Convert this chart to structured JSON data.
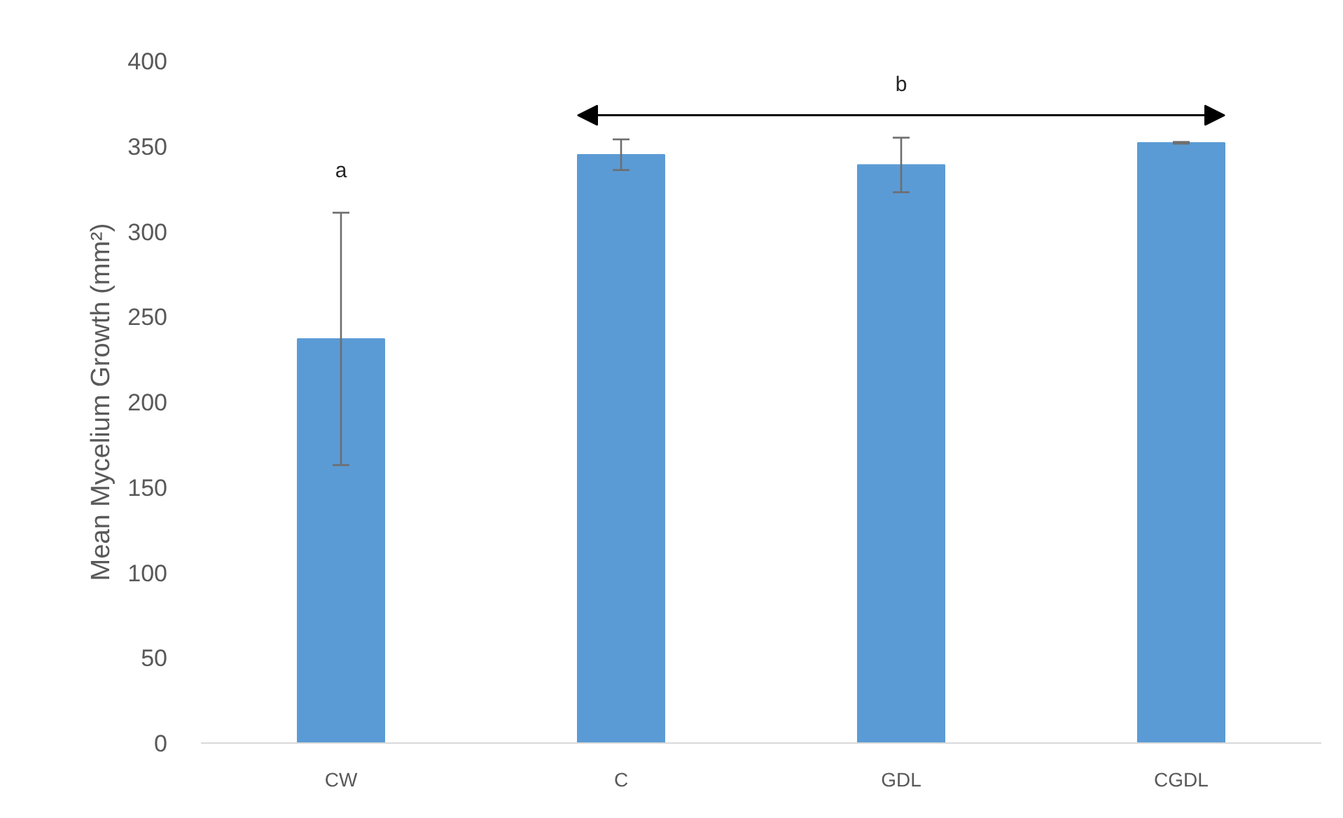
{
  "chart_data": {
    "type": "bar",
    "ylabel": "Mean Mycelium Growth (mm²)",
    "categories": [
      "CW",
      "C",
      "GDL",
      "CGDL"
    ],
    "values": [
      237,
      345,
      339,
      352
    ],
    "errors": [
      74,
      9,
      16,
      0.5
    ],
    "color": "#5b9bd5",
    "ylim": [
      0,
      400
    ],
    "yticks": [
      0,
      50,
      100,
      150,
      200,
      250,
      300,
      350,
      400
    ],
    "grid": false,
    "annotations": [
      "a",
      "b"
    ]
  }
}
